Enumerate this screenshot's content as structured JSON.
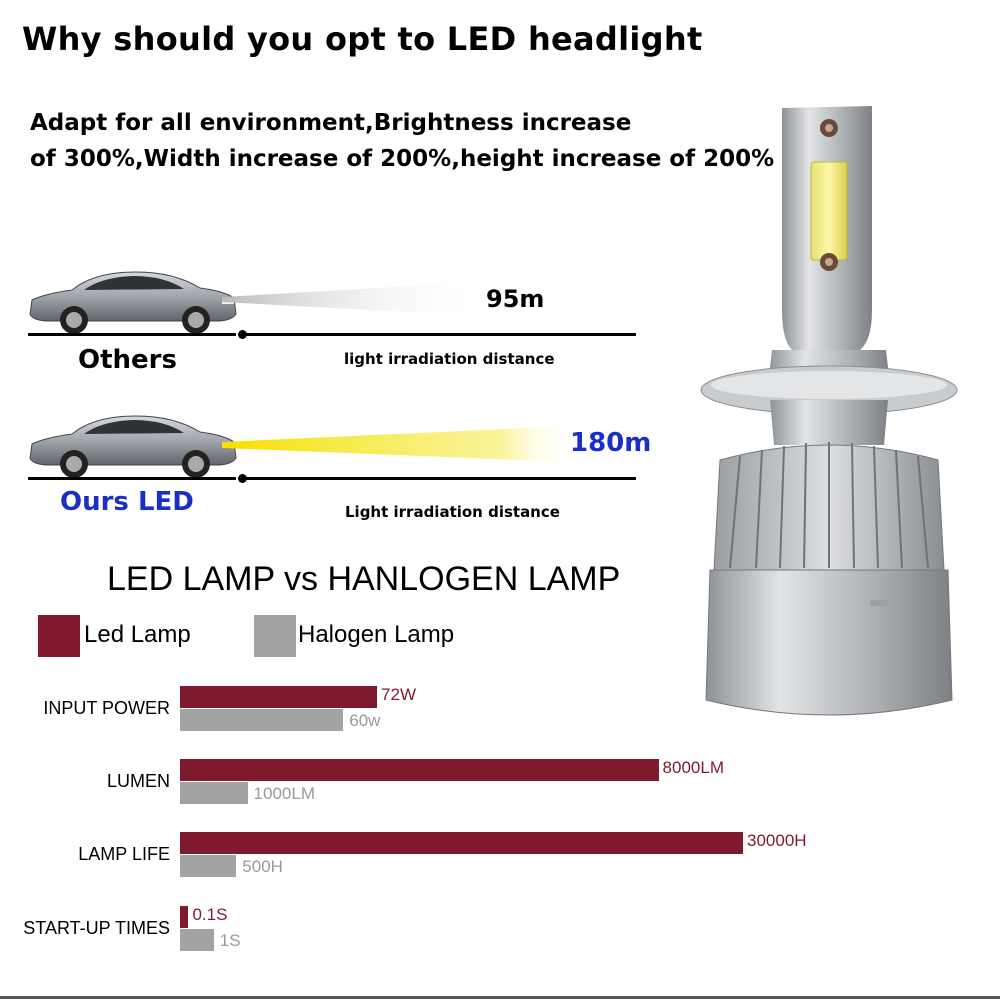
{
  "title": "Why should you opt to LED headlight",
  "subtitle_line1": "Adapt for all environment,Brightness increase",
  "subtitle_line2": "of 300%,Width increase of 200%,height increase of 200%",
  "comparison": {
    "others": {
      "distance": "95m",
      "label": "Others",
      "caption": "light irradiation distance"
    },
    "ours": {
      "distance": "180m",
      "label": "Ours LED",
      "caption": "Light irradiation distance"
    }
  },
  "colors": {
    "led": "#7f1a2e",
    "halogen": "#a3a3a3",
    "blue": "#1a2ec8"
  },
  "chart_data": {
    "type": "bar",
    "title": "LED LAMP vs HANLOGEN LAMP",
    "legend": [
      "Led Lamp",
      "Halogen Lamp"
    ],
    "categories": [
      "INPUT POWER",
      "LUMEN",
      "LAMP LIFE",
      "START-UP TIMES"
    ],
    "series": [
      {
        "name": "Led Lamp",
        "labels": [
          "72W",
          "8000LM",
          "30000H",
          "0.1S"
        ],
        "values": [
          72,
          8000,
          30000,
          0.1
        ]
      },
      {
        "name": "Halogen Lamp",
        "labels": [
          "60w",
          "1000LM",
          "500H",
          "1S"
        ],
        "values": [
          60,
          1000,
          500,
          1
        ]
      }
    ],
    "led_fraction": [
      0.35,
      0.85,
      1.0,
      0.015
    ],
    "halogen_fraction": [
      0.29,
      0.12,
      0.1,
      0.06
    ]
  }
}
